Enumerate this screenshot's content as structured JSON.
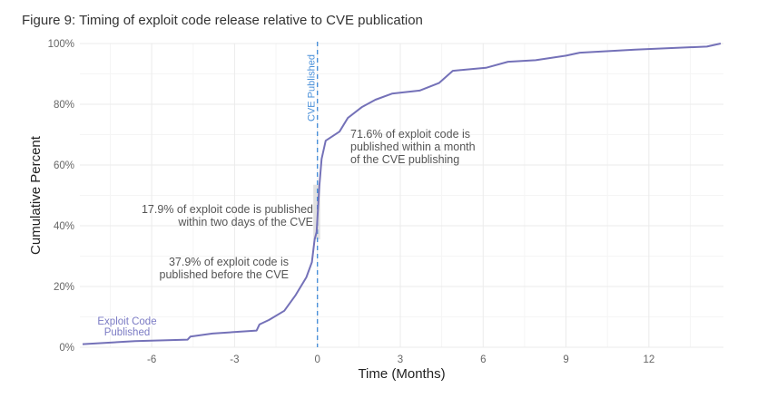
{
  "figure_title": "Figure 9: Timing of exploit code release relative to CVE publication",
  "colors": {
    "curve": "#7471b8",
    "cve_line": "#4a90d9",
    "grid_major": "#ebebeb",
    "grid_minor": "#f5f5f5",
    "highlight": "#d9d9d9"
  },
  "chart_data": {
    "type": "line",
    "title": "Figure 9: Timing of exploit code release relative to CVE publication",
    "xlabel": "Time (Months)",
    "ylabel": "Cumulative Percent",
    "xlim": [
      -8.6,
      14.7
    ],
    "ylim": [
      0,
      100
    ],
    "x_ticks": [
      -6,
      -3,
      0,
      3,
      6,
      9,
      12
    ],
    "x_tick_labels": [
      "-6",
      "-3",
      "0",
      "3",
      "6",
      "9",
      "12"
    ],
    "y_ticks": [
      0,
      20,
      40,
      60,
      80,
      100
    ],
    "y_tick_labels": [
      "0%",
      "20%",
      "40%",
      "60%",
      "80%",
      "100%"
    ],
    "grid": true,
    "legend": "none",
    "series": [
      {
        "name": "Exploit Code Published",
        "x": [
          -8.5,
          -6.6,
          -4.7,
          -4.6,
          -3.8,
          -2.2,
          -2.1,
          -1.75,
          -1.2,
          -0.8,
          -0.4,
          -0.2,
          -0.1,
          -0.03,
          0.07,
          0.15,
          0.3,
          0.8,
          1.1,
          1.6,
          2.1,
          2.7,
          3.7,
          4.4,
          4.9,
          6.1,
          6.9,
          7.9,
          9.0,
          9.5,
          11.5,
          14.1,
          14.6
        ],
        "y": [
          1,
          2,
          2.5,
          3.5,
          4.5,
          5.5,
          7.5,
          9,
          12,
          17,
          23,
          28,
          35.5,
          37.9,
          53,
          62,
          68,
          71,
          75.5,
          79,
          81.5,
          83.5,
          84.5,
          87,
          91,
          92,
          94,
          94.5,
          96,
          97,
          98,
          99,
          100
        ]
      }
    ],
    "vertical_line": {
      "x": 0,
      "label": "CVE Published",
      "style": "dashed"
    },
    "highlight_band": {
      "x_from": -0.05,
      "x_to": 0.1,
      "y_from": 35.5,
      "y_to": 53.5
    },
    "annotations": [
      {
        "lines": [
          "71.6% of exploit code is",
          "published within a month",
          "of the CVE publishing"
        ],
        "anchor": "start"
      },
      {
        "lines": [
          "17.9% of exploit code is published",
          "within two days of the CVE"
        ],
        "anchor": "end"
      },
      {
        "lines": [
          "37.9% of exploit code is",
          "published before the CVE"
        ],
        "anchor": "end"
      }
    ],
    "series_label": [
      "Exploit Code",
      "Published"
    ]
  }
}
